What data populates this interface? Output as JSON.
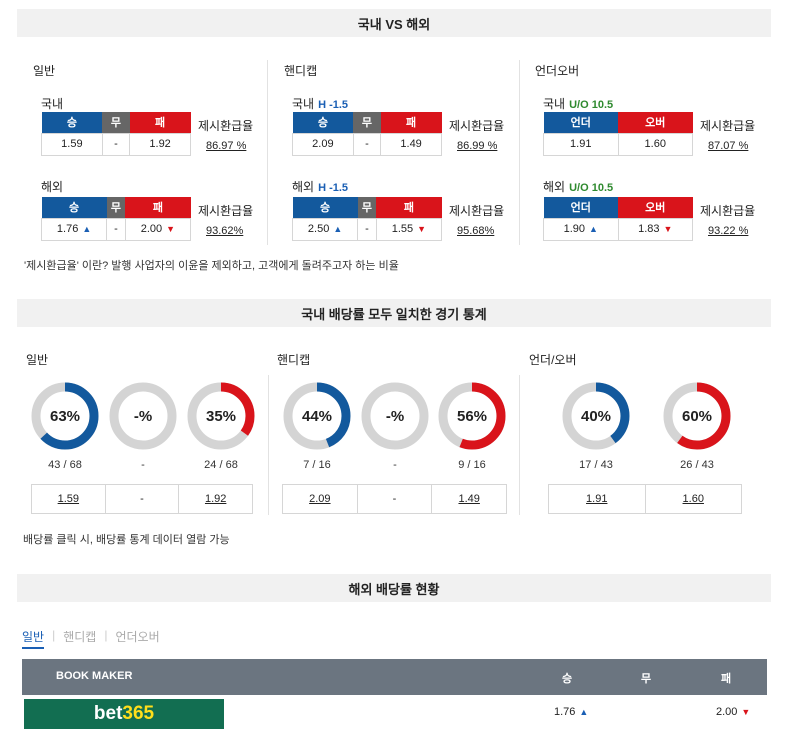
{
  "sections": {
    "domestic_vs_overseas": "국내 VS 해외",
    "matched_stats": "국내 배당률 모두 일치한 경기 통계",
    "overseas_status": "해외 배당률 현황"
  },
  "odds_columns": [
    {
      "title": "일반",
      "domestic": {
        "label": "국내",
        "handicap": "",
        "headers": [
          "승",
          "무",
          "패"
        ],
        "values": [
          "1.59",
          "-",
          "1.92"
        ],
        "rate_label": "제시환급율",
        "rate": "86.97 %"
      },
      "overseas": {
        "label": "해외",
        "handicap": "",
        "headers": [
          "승",
          "무",
          "패"
        ],
        "values": [
          "1.76",
          "-",
          "2.00"
        ],
        "rate_label": "제시환급율",
        "rate": "93.62%"
      }
    },
    {
      "title": "핸디캡",
      "domestic": {
        "label": "국내",
        "handicap": "H -1.5",
        "headers": [
          "승",
          "무",
          "패"
        ],
        "values": [
          "2.09",
          "-",
          "1.49"
        ],
        "rate_label": "제시환급율",
        "rate": "86.99 %"
      },
      "overseas": {
        "label": "해외",
        "handicap": "H -1.5",
        "headers": [
          "승",
          "무",
          "패"
        ],
        "values": [
          "2.50",
          "-",
          "1.55"
        ],
        "rate_label": "제시환급율",
        "rate": "95.68%"
      }
    },
    {
      "title": "언더오버",
      "domestic": {
        "label": "국내",
        "handicap": "U/O 10.5",
        "headers": [
          "언더",
          "오버"
        ],
        "values": [
          "1.91",
          "1.60"
        ],
        "rate_label": "제시환급율",
        "rate": "87.07 %"
      },
      "overseas": {
        "label": "해외",
        "handicap": "U/O 10.5",
        "headers": [
          "언더",
          "오버"
        ],
        "values": [
          "1.90",
          "1.83"
        ],
        "rate_label": "제시환급율",
        "rate": "93.22 %"
      }
    }
  ],
  "arrows": {
    "up": "▲",
    "down": "▼"
  },
  "rate_note": "'제시환급율' 이란? 발행 사업자의 이윤을 제외하고, 고객에게 돌려주고자 하는 비율",
  "stats": [
    {
      "title": "일반",
      "donuts": [
        {
          "pct": "63%",
          "value": 0.63,
          "color": "#13599d",
          "frac": "43 / 68"
        },
        {
          "pct": "-%",
          "value": 0,
          "color": "#cccccc",
          "frac": "-"
        },
        {
          "pct": "35%",
          "value": 0.35,
          "color": "#d9141b",
          "frac": "24 / 68"
        }
      ],
      "odds": [
        "1.59",
        "-",
        "1.92"
      ]
    },
    {
      "title": "핸디캡",
      "donuts": [
        {
          "pct": "44%",
          "value": 0.44,
          "color": "#13599d",
          "frac": "7 / 16"
        },
        {
          "pct": "-%",
          "value": 0,
          "color": "#cccccc",
          "frac": "-"
        },
        {
          "pct": "56%",
          "value": 0.56,
          "color": "#d9141b",
          "frac": "9 / 16"
        }
      ],
      "odds": [
        "2.09",
        "-",
        "1.49"
      ]
    },
    {
      "title": "언더/오버",
      "donuts": [
        {
          "pct": "40%",
          "value": 0.4,
          "color": "#13599d",
          "frac": "17 / 43"
        },
        {
          "pct": "60%",
          "value": 0.6,
          "color": "#d9141b",
          "frac": "26 / 43"
        }
      ],
      "odds": [
        "1.91",
        "1.60"
      ]
    }
  ],
  "stats_note": "배당률 클릭 시, 배당률 통계 데이터 열람 가능",
  "tabs": [
    "일반",
    "핸디캡",
    "언더오버"
  ],
  "bookmaker_table": {
    "headers": [
      "BOOK MAKER",
      "승",
      "무",
      "패"
    ],
    "rows": [
      {
        "bookmaker": "bet365",
        "logo_main": "bet",
        "logo_accent": "365",
        "win": "1.76",
        "draw": "",
        "lose": "2.00"
      }
    ]
  }
}
